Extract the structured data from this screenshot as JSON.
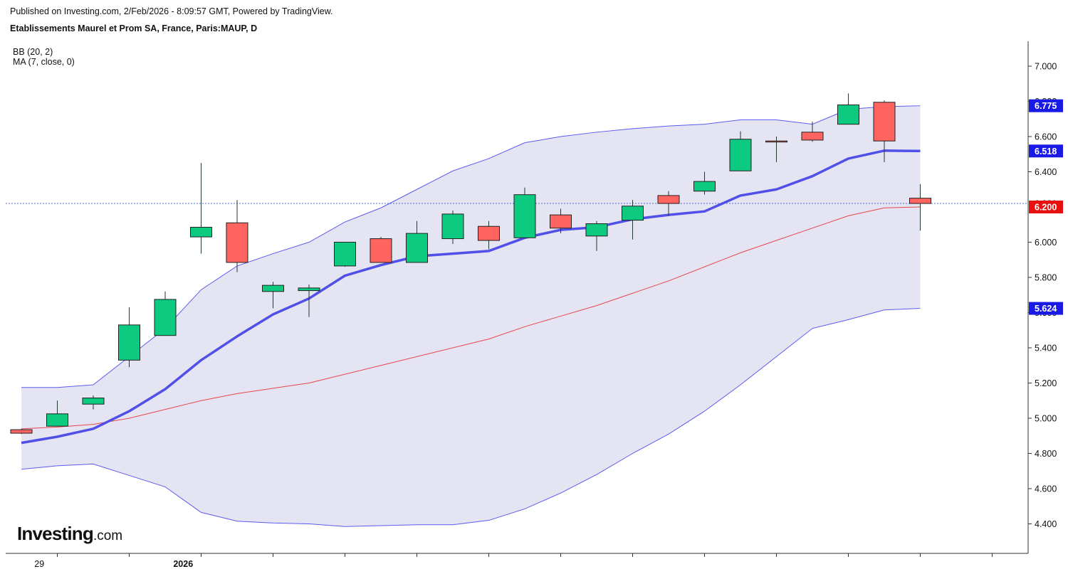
{
  "header": {
    "published": "Published on Investing.com, 2/Feb/2026 - 8:09:57 GMT, Powered by TradingView.",
    "symbol": "Etablissements Maurel et Prom SA, France, Paris:MAUP, D"
  },
  "indicators": {
    "bb": "BB (20, 2)",
    "ma": "MA (7, close, 0)"
  },
  "logo": {
    "brand": "Investing",
    "suffix": ".com"
  },
  "colors": {
    "up": "#0ccb80",
    "down": "#ff6460",
    "wick": "#1f3a2e",
    "bb_band": "#5b5bef",
    "bb_basis": "#e8474c",
    "bb_fill": "#e4e4f2",
    "ma": "#5050e8",
    "last_line": "#4a6fd8",
    "price_tag": "#e8100f",
    "axis_tag": "#1a1ae6"
  },
  "chart_data": {
    "type": "candlestick",
    "ylim": [
      4.25,
      7.14
    ],
    "yticks": [
      "4.400",
      "4.600",
      "4.800",
      "5.000",
      "5.200",
      "5.400",
      "5.600",
      "5.800",
      "6.000",
      "6.200",
      "6.400",
      "6.600",
      "6.800",
      "7.000"
    ],
    "x_labels": [
      {
        "index": 0.5,
        "label": "29"
      },
      {
        "index": 4.5,
        "label": "2026"
      }
    ],
    "candles": [
      {
        "o": 4.935,
        "h": 4.94,
        "l": 4.91,
        "c": 4.915
      },
      {
        "o": 4.955,
        "h": 5.1,
        "l": 4.955,
        "c": 5.025
      },
      {
        "o": 5.08,
        "h": 5.13,
        "l": 5.05,
        "c": 5.115
      },
      {
        "o": 5.33,
        "h": 5.63,
        "l": 5.29,
        "c": 5.53
      },
      {
        "o": 5.47,
        "h": 5.72,
        "l": 5.47,
        "c": 5.675
      },
      {
        "o": 6.03,
        "h": 6.45,
        "l": 5.935,
        "c": 6.085
      },
      {
        "o": 6.11,
        "h": 6.24,
        "l": 5.83,
        "c": 5.885
      },
      {
        "o": 5.72,
        "h": 5.775,
        "l": 5.625,
        "c": 5.755
      },
      {
        "o": 5.725,
        "h": 5.76,
        "l": 5.575,
        "c": 5.74
      },
      {
        "o": 5.865,
        "h": 6.0,
        "l": 5.86,
        "c": 6.0
      },
      {
        "o": 6.02,
        "h": 6.03,
        "l": 5.885,
        "c": 5.885
      },
      {
        "o": 5.885,
        "h": 6.12,
        "l": 5.885,
        "c": 6.05
      },
      {
        "o": 6.02,
        "h": 6.18,
        "l": 5.99,
        "c": 6.16
      },
      {
        "o": 6.09,
        "h": 6.12,
        "l": 5.96,
        "c": 6.01
      },
      {
        "o": 6.025,
        "h": 6.31,
        "l": 6.025,
        "c": 6.27
      },
      {
        "o": 6.155,
        "h": 6.19,
        "l": 6.05,
        "c": 6.08
      },
      {
        "o": 6.035,
        "h": 6.12,
        "l": 5.95,
        "c": 6.105
      },
      {
        "o": 6.125,
        "h": 6.24,
        "l": 6.015,
        "c": 6.205
      },
      {
        "o": 6.265,
        "h": 6.29,
        "l": 6.15,
        "c": 6.22
      },
      {
        "o": 6.29,
        "h": 6.4,
        "l": 6.27,
        "c": 6.345
      },
      {
        "o": 6.405,
        "h": 6.63,
        "l": 6.405,
        "c": 6.585
      },
      {
        "o": 6.575,
        "h": 6.6,
        "l": 6.455,
        "c": 6.57
      },
      {
        "o": 6.625,
        "h": 6.685,
        "l": 6.57,
        "c": 6.58
      },
      {
        "o": 6.67,
        "h": 6.845,
        "l": 6.67,
        "c": 6.78
      },
      {
        "o": 6.795,
        "h": 6.805,
        "l": 6.455,
        "c": 6.575
      },
      {
        "o": 6.25,
        "h": 6.33,
        "l": 6.065,
        "c": 6.22
      }
    ],
    "bb_upper": [
      5.175,
      5.175,
      5.19,
      5.35,
      5.51,
      5.73,
      5.865,
      5.935,
      6.0,
      6.115,
      6.195,
      6.3,
      6.405,
      6.475,
      6.565,
      6.6,
      6.625,
      6.645,
      6.66,
      6.67,
      6.695,
      6.695,
      6.67,
      6.755,
      6.77,
      6.775
    ],
    "bb_basis": [
      4.94,
      4.95,
      4.965,
      5.0,
      5.05,
      5.1,
      5.14,
      5.17,
      5.2,
      5.25,
      5.3,
      5.35,
      5.4,
      5.45,
      5.52,
      5.58,
      5.64,
      5.71,
      5.78,
      5.86,
      5.94,
      6.01,
      6.08,
      6.15,
      6.195,
      6.2
    ],
    "bb_lower": [
      4.71,
      4.73,
      4.74,
      4.675,
      4.61,
      4.465,
      4.415,
      4.405,
      4.4,
      4.385,
      4.39,
      4.395,
      4.395,
      4.42,
      4.485,
      4.575,
      4.68,
      4.8,
      4.91,
      5.04,
      5.19,
      5.35,
      5.51,
      5.56,
      5.615,
      5.624
    ],
    "ma": [
      4.86,
      4.895,
      4.94,
      5.04,
      5.165,
      5.33,
      5.465,
      5.59,
      5.68,
      5.81,
      5.87,
      5.92,
      5.935,
      5.95,
      6.025,
      6.07,
      6.085,
      6.13,
      6.155,
      6.175,
      6.265,
      6.3,
      6.375,
      6.475,
      6.52,
      6.518
    ],
    "last_price": 6.22,
    "axis_tags": [
      {
        "value": 6.775,
        "label": "6.775",
        "kind": "band"
      },
      {
        "value": 6.518,
        "label": "6.518",
        "kind": "ma"
      },
      {
        "value": 6.22,
        "label": "6.220",
        "kind": "last"
      },
      {
        "value": 6.2,
        "label": "6.200",
        "kind": "price"
      },
      {
        "value": 5.624,
        "label": "5.624",
        "kind": "band"
      }
    ]
  }
}
